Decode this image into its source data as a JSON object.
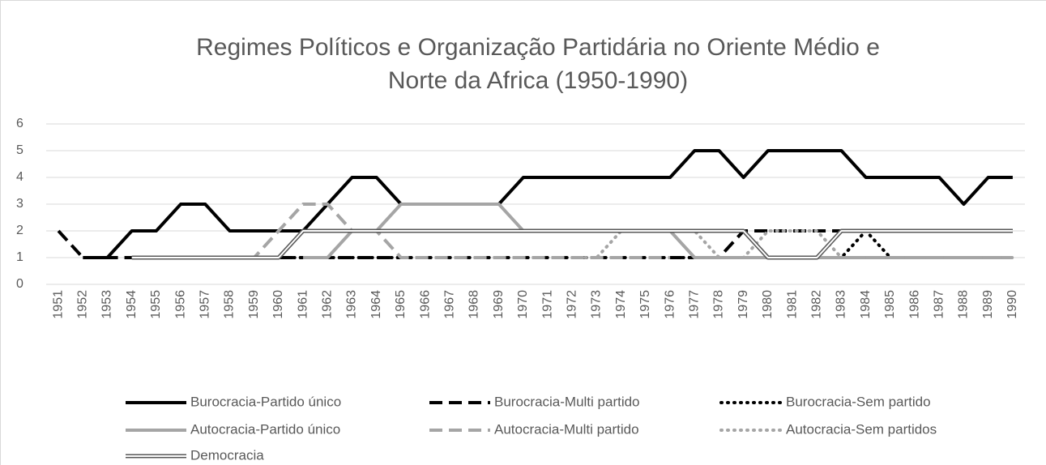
{
  "chart_data": {
    "type": "line",
    "title": "Regimes Políticos e Organização Partidária no Oriente Médio e",
    "subtitle": "Norte da Africa (1950-1990)",
    "categories": [
      "1951",
      "1952",
      "1953",
      "1954",
      "1955",
      "1956",
      "1957",
      "1958",
      "1959",
      "1960",
      "1961",
      "1962",
      "1963",
      "1964",
      "1965",
      "1966",
      "1967",
      "1968",
      "1969",
      "1970",
      "1971",
      "1972",
      "1973",
      "1974",
      "1975",
      "1976",
      "1977",
      "1978",
      "1979",
      "1980",
      "1981",
      "1982",
      "1983",
      "1984",
      "1985",
      "1986",
      "1987",
      "1988",
      "1989",
      "1990"
    ],
    "ylim": [
      0,
      6
    ],
    "yticks": [
      0,
      1,
      2,
      3,
      4,
      5,
      6
    ],
    "grid": true,
    "series": [
      {
        "name": "Burocracia-Partido único",
        "color": "#000000",
        "style": "solid",
        "values": [
          null,
          1,
          1,
          2,
          2,
          3,
          3,
          2,
          2,
          2,
          2,
          3,
          4,
          4,
          3,
          3,
          3,
          3,
          3,
          4,
          4,
          4,
          4,
          4,
          4,
          4,
          5,
          5,
          4,
          5,
          5,
          5,
          5,
          4,
          4,
          4,
          4,
          3,
          4,
          4
        ]
      },
      {
        "name": "Burocracia-Multi partido",
        "color": "#000000",
        "style": "dash",
        "values": [
          2,
          1,
          1,
          1,
          1,
          1,
          1,
          1,
          1,
          1,
          1,
          1,
          1,
          1,
          1,
          1,
          1,
          1,
          1,
          1,
          1,
          1,
          1,
          1,
          1,
          1,
          1,
          1,
          2,
          2,
          2,
          2,
          2,
          2,
          2,
          2,
          2,
          2,
          2,
          2
        ]
      },
      {
        "name": "Burocracia-Sem partido",
        "color": "#000000",
        "style": "dot",
        "values": [
          null,
          null,
          null,
          1,
          1,
          1,
          1,
          1,
          1,
          1,
          1,
          1,
          1,
          1,
          1,
          1,
          1,
          1,
          1,
          1,
          1,
          1,
          1,
          1,
          1,
          1,
          1,
          1,
          1,
          1,
          1,
          1,
          1,
          2,
          1,
          null,
          null,
          null,
          null,
          null
        ]
      },
      {
        "name": "Autocracia-Partido único",
        "color": "#a5a5a5",
        "style": "solid",
        "values": [
          null,
          null,
          null,
          null,
          null,
          null,
          null,
          null,
          null,
          null,
          1,
          1,
          2,
          2,
          3,
          3,
          3,
          3,
          3,
          2,
          2,
          2,
          2,
          2,
          2,
          2,
          1,
          1,
          1,
          1,
          1,
          1,
          1,
          1,
          1,
          1,
          1,
          1,
          1,
          1
        ]
      },
      {
        "name": "Autocracia-Multi partido",
        "color": "#a5a5a5",
        "style": "dash",
        "values": [
          null,
          null,
          null,
          1,
          1,
          1,
          1,
          1,
          1,
          2,
          3,
          3,
          2,
          2,
          1,
          1,
          1,
          1,
          1,
          1,
          1,
          1,
          1,
          1,
          1,
          1,
          null,
          null,
          null,
          null,
          null,
          null,
          null,
          1,
          1,
          1,
          1,
          1,
          1,
          1
        ]
      },
      {
        "name": "Autocracia-Sem partidos",
        "color": "#a5a5a5",
        "style": "dot",
        "values": [
          null,
          null,
          null,
          null,
          null,
          null,
          null,
          null,
          null,
          null,
          null,
          null,
          null,
          null,
          null,
          null,
          null,
          null,
          null,
          null,
          null,
          1,
          1,
          2,
          2,
          2,
          2,
          1,
          1,
          2,
          2,
          2,
          1,
          1,
          1,
          1,
          1,
          1,
          1,
          1
        ]
      },
      {
        "name": "Democracia",
        "color": "#595959",
        "style": "double",
        "values": [
          null,
          null,
          null,
          1,
          1,
          1,
          1,
          1,
          1,
          1,
          2,
          2,
          2,
          2,
          2,
          2,
          2,
          2,
          2,
          2,
          2,
          2,
          2,
          2,
          2,
          2,
          2,
          2,
          2,
          1,
          1,
          1,
          2,
          2,
          2,
          2,
          2,
          2,
          2,
          2
        ]
      }
    ]
  }
}
